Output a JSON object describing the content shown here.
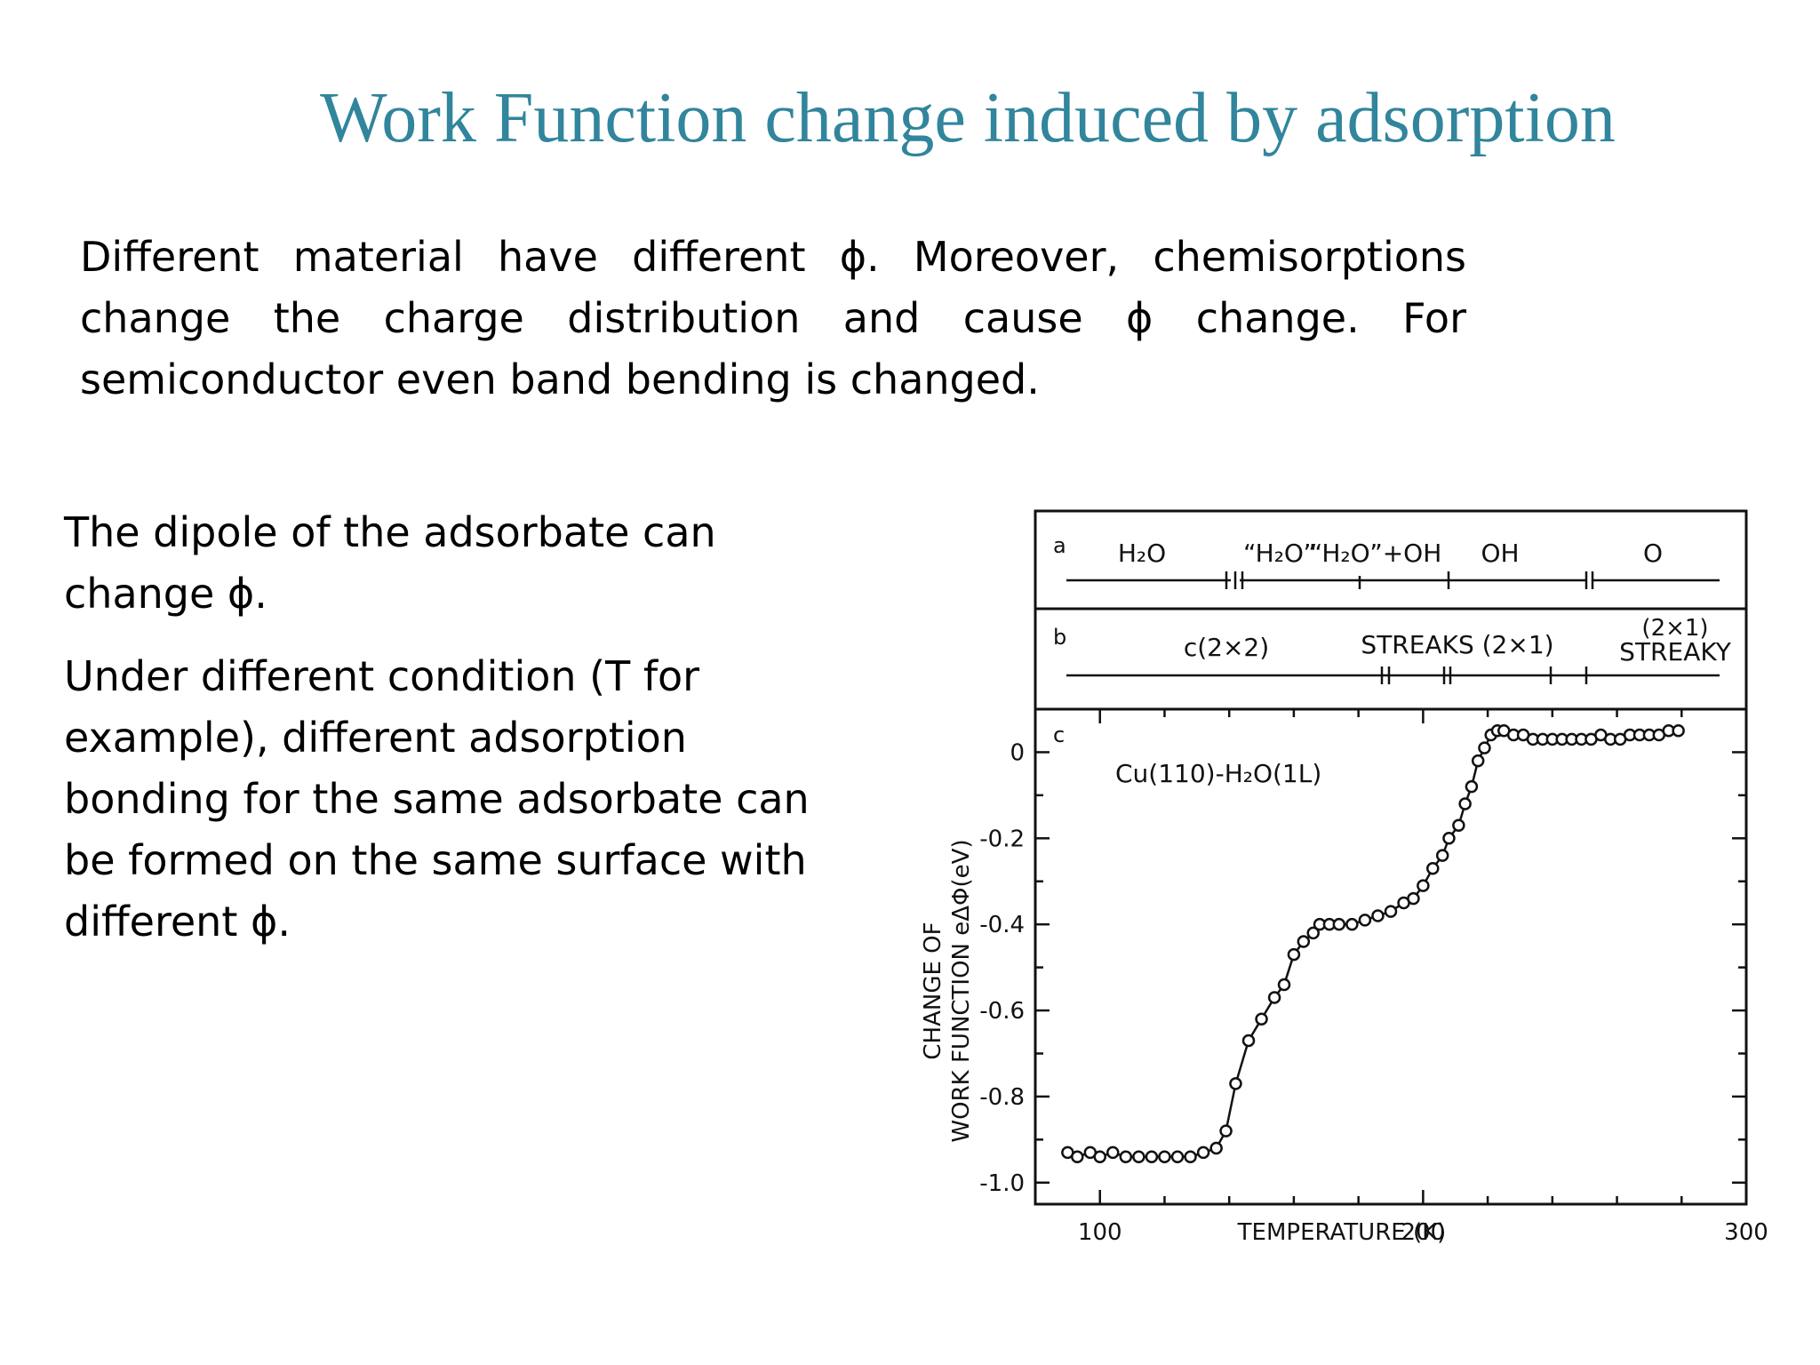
{
  "title": "Work Function change induced by adsorption",
  "intro": "Different material have different ϕ. Moreover, chemisorptions change the charge distribution and cause ϕ change. For semiconductor even band bending is changed.",
  "left_paragraphs": [
    "The dipole of the adsorbate can change ϕ.",
    "Under different condition (T for example), different adsorption bonding for the same adsorbate can be formed on the same surface with different ϕ."
  ],
  "figure": {
    "panel_a": {
      "letter": "a",
      "labels": [
        "H₂O",
        "“H₂O”",
        "“H₂O”+OH",
        "OH",
        "O"
      ]
    },
    "panel_b": {
      "letter": "b",
      "labels": [
        "c(2×2)",
        "STREAKS (2×1)",
        "(2×1)",
        "STREAKY"
      ]
    },
    "panel_c": {
      "letter": "c",
      "annotation": "Cu(110)-H₂O(1L)"
    },
    "accent_color": "#31859c",
    "ink_color": "#111111"
  },
  "chart_data": {
    "type": "line",
    "xlabel": "TEMPERATURE (K)",
    "ylabel_line1": "CHANGE OF",
    "ylabel_line2": "WORK FUNCTION eΔΦ(eV)",
    "x_ticks": [
      "100",
      "200",
      "300"
    ],
    "y_ticks": [
      "0",
      "-0.2",
      "-0.4",
      "-0.6",
      "-0.8",
      "-1.0"
    ],
    "xlim": [
      80,
      300
    ],
    "ylim": [
      -1.05,
      0.1
    ],
    "grid": false,
    "series": [
      {
        "x": [
          90,
          93,
          97,
          100,
          104,
          108,
          112,
          116,
          120,
          124,
          128,
          132,
          136,
          139,
          142,
          146,
          150,
          154,
          157,
          160,
          163,
          166,
          168,
          171,
          174,
          178,
          182,
          186,
          190,
          194,
          197,
          200,
          203,
          206,
          208,
          211,
          213,
          215,
          217,
          219,
          221,
          223,
          225,
          228,
          231,
          234,
          237,
          240,
          243,
          246,
          249,
          252,
          255,
          258,
          261,
          264,
          267,
          270,
          273,
          276,
          279
        ],
        "y": [
          -0.93,
          -0.94,
          -0.93,
          -0.94,
          -0.93,
          -0.94,
          -0.94,
          -0.94,
          -0.94,
          -0.94,
          -0.94,
          -0.93,
          -0.92,
          -0.88,
          -0.77,
          -0.67,
          -0.62,
          -0.57,
          -0.54,
          -0.47,
          -0.44,
          -0.42,
          -0.4,
          -0.4,
          -0.4,
          -0.4,
          -0.39,
          -0.38,
          -0.37,
          -0.35,
          -0.34,
          -0.31,
          -0.27,
          -0.24,
          -0.2,
          -0.17,
          -0.12,
          -0.08,
          -0.02,
          0.01,
          0.04,
          0.05,
          0.05,
          0.04,
          0.04,
          0.03,
          0.03,
          0.03,
          0.03,
          0.03,
          0.03,
          0.03,
          0.04,
          0.03,
          0.03,
          0.04,
          0.04,
          0.04,
          0.04,
          0.05,
          0.05
        ]
      }
    ]
  }
}
